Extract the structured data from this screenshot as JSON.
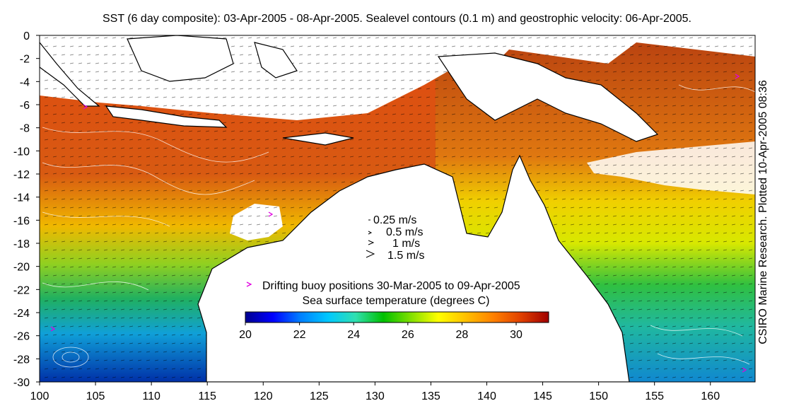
{
  "title": "SST (6 day composite): 03-Apr-2005 - 08-Apr-2005. Sealevel contours (0.1 m) and geostrophic velocity: 06-Apr-2005.",
  "credit": "CSIRO Marine Research. Plotted 10-Apr-2005 08:36",
  "map": {
    "lon_range": [
      100,
      164
    ],
    "lat_range": [
      -30,
      0
    ],
    "x_ticks": [
      "100",
      "105",
      "110",
      "115",
      "120",
      "125",
      "130",
      "135",
      "140",
      "145",
      "150",
      "155",
      "160"
    ],
    "y_ticks": [
      "0",
      "-2",
      "-4",
      "-6",
      "-8",
      "-10",
      "-12",
      "-14",
      "-16",
      "-18",
      "-20",
      "-22",
      "-24",
      "-26",
      "-28",
      "-30"
    ],
    "land_color": "#ffffff",
    "coast_color": "#000000",
    "contour_color": "#ffffff",
    "buoy_color": "#e000e0"
  },
  "velocity_key": {
    "entries": [
      "0.25 m/s",
      "0.5 m/s",
      "1 m/s",
      "1.5 m/s"
    ]
  },
  "buoy_legend": "Drifting buoy positions 30-Mar-2005 to 09-Apr-2005",
  "colorbar": {
    "label": "Sea surface temperature (degrees C)",
    "range": [
      20,
      31.2
    ],
    "ticks": [
      "20",
      "22",
      "24",
      "26",
      "28",
      "30"
    ],
    "colors": [
      "#00008f",
      "#0000ff",
      "#0080ff",
      "#00c8ff",
      "#30e0b0",
      "#00c000",
      "#80e000",
      "#ffff00",
      "#ffc000",
      "#ff8000",
      "#e04000",
      "#a00000"
    ]
  }
}
